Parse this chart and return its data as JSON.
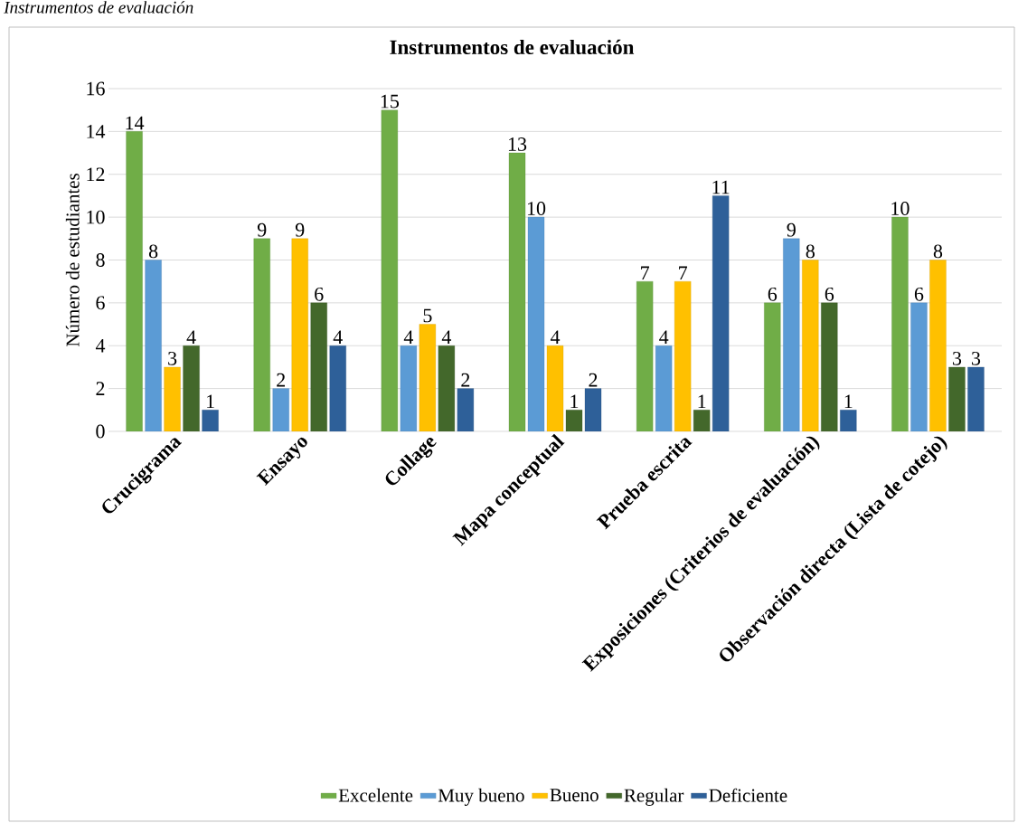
{
  "chart_data": {
    "type": "bar",
    "title": "Instrumentos de evaluación",
    "ylabel": "Número de estudiantes",
    "annotations": [
      "Instrumentos de evaluación"
    ],
    "categories": [
      "Crucigrama",
      "Ensayo",
      "Collage",
      "Mapa conceptual",
      "Prueba escrita",
      "Exposiciones (Criterios de evaluación)",
      "Observación directa (Lista de cotejo)"
    ],
    "series": [
      {
        "name": "Excelente",
        "color": "#70ad47",
        "values": [
          14,
          9,
          15,
          13,
          7,
          6,
          10
        ]
      },
      {
        "name": "Muy bueno",
        "color": "#5b9bd5",
        "values": [
          8,
          2,
          4,
          10,
          4,
          9,
          6
        ]
      },
      {
        "name": "Bueno",
        "color": "#ffc000",
        "values": [
          3,
          9,
          5,
          4,
          7,
          8,
          8
        ]
      },
      {
        "name": "Regular",
        "color": "#43682b",
        "values": [
          4,
          6,
          4,
          1,
          1,
          6,
          3
        ]
      },
      {
        "name": "Deficiente",
        "color": "#2e6099",
        "values": [
          1,
          4,
          2,
          2,
          11,
          1,
          3
        ]
      }
    ],
    "ylim": [
      0,
      16
    ],
    "yticks": [
      0,
      2,
      4,
      6,
      8,
      10,
      12,
      14,
      16
    ],
    "grid": "y",
    "legend": "bottom",
    "data_labels": true
  }
}
